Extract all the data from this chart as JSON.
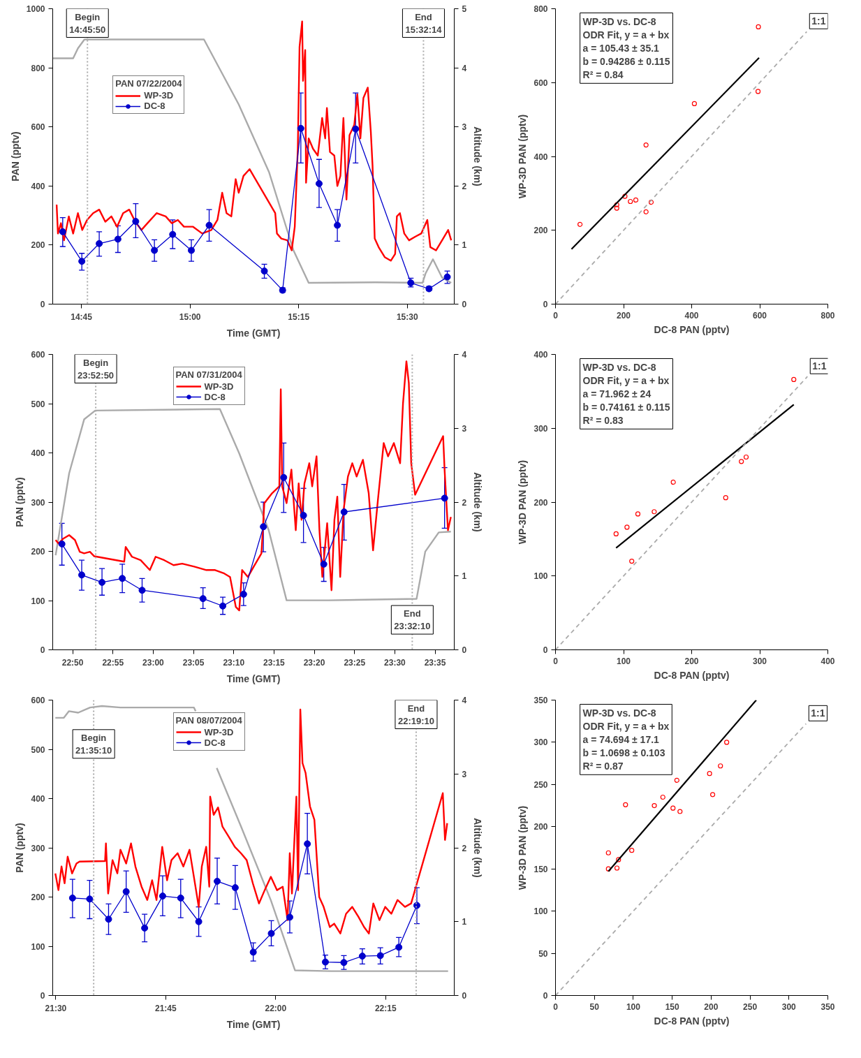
{
  "chart_data": [
    {
      "type": "line",
      "xlabel": "Time (GMT)",
      "ylabel": "PAN (pptv)",
      "y2label": "Altitude (km)",
      "legend_title": "PAN 07/22/2004",
      "legend": "top left",
      "grid": false,
      "xlim": [
        14.684,
        15.608
      ],
      "ylim": [
        0,
        1000
      ],
      "y2lim": [
        0,
        5
      ],
      "xticks": [
        {
          "value": 14.75,
          "label": "14:45"
        },
        {
          "value": 15,
          "label": "15:00"
        },
        {
          "value": 15.25,
          "label": "15:15"
        },
        {
          "value": 15.5,
          "label": "15:30"
        }
      ],
      "yticks": [
        0,
        200,
        400,
        600,
        800,
        1000
      ],
      "y2ticks": [
        0,
        1,
        2,
        3,
        4,
        5
      ],
      "annotations": [
        "Begin\n14:45:50",
        "End\n15:32:14"
      ],
      "ref_lines": [
        {
          "axis": "x",
          "value": 14.7639,
          "color": "#aaaaaa",
          "line_style": "dotted"
        },
        {
          "axis": "x",
          "value": 15.5372,
          "color": "#aaaaaa",
          "line_style": "dotted"
        }
      ],
      "series": [
        {
          "color": "#aaaaaa",
          "axis": "y2",
          "x": [
            14.684,
            14.731,
            14.742,
            14.757,
            15.032,
            15.112,
            15.182,
            15.238,
            15.273,
            15.427,
            15.535,
            15.542,
            15.559,
            15.58,
            15.601
          ],
          "values": [
            4.16,
            4.16,
            4.33,
            4.48,
            4.48,
            3.38,
            2.23,
            0.91,
            0.36,
            0.37,
            0.36,
            0.52,
            0.76,
            0.45,
            0.36
          ]
        },
        {
          "name": "WP-3D",
          "color": "#ff0000",
          "x": [
            14.693,
            14.696,
            14.703,
            14.71,
            14.721,
            14.731,
            14.742,
            14.752,
            14.763,
            14.777,
            14.791,
            14.805,
            14.819,
            14.832,
            14.846,
            14.86,
            14.874,
            14.888,
            14.902,
            14.923,
            14.944,
            14.958,
            14.972,
            14.986,
            15.007,
            15.028,
            15.049,
            15.063,
            15.074,
            15.084,
            15.095,
            15.105,
            15.112,
            15.123,
            15.137,
            15.196,
            15.2,
            15.21,
            15.224,
            15.234,
            15.241,
            15.248,
            15.252,
            15.258,
            15.26,
            15.265,
            15.267,
            15.273,
            15.283,
            15.294,
            15.304,
            15.311,
            15.315,
            15.322,
            15.332,
            15.339,
            15.346,
            15.353,
            15.36,
            15.367,
            15.378,
            15.385,
            15.392,
            15.399,
            15.409,
            15.416,
            15.42,
            15.425,
            15.434,
            15.448,
            15.462,
            15.472,
            15.476,
            15.483,
            15.493,
            15.504,
            15.518,
            15.532,
            15.546,
            15.553,
            15.566,
            15.58,
            15.594,
            15.601
          ],
          "values": [
            337,
            239,
            274,
            216,
            297,
            239,
            308,
            251,
            285,
            308,
            320,
            279,
            297,
            262,
            308,
            320,
            279,
            251,
            274,
            308,
            297,
            274,
            285,
            262,
            262,
            239,
            251,
            285,
            377,
            308,
            297,
            423,
            377,
            434,
            457,
            308,
            239,
            222,
            216,
            182,
            262,
            526,
            871,
            957,
            756,
            860,
            411,
            561,
            526,
            503,
            630,
            561,
            664,
            515,
            503,
            400,
            434,
            630,
            354,
            572,
            607,
            710,
            561,
            698,
            733,
            584,
            469,
            222,
            193,
            159,
            147,
            170,
            297,
            308,
            239,
            216,
            228,
            239,
            285,
            193,
            182,
            216,
            251,
            216
          ]
        },
        {
          "name": "DC-8",
          "color": "#0000cc",
          "marker": "circle",
          "x": [
            14.707,
            14.751,
            14.791,
            14.834,
            14.875,
            14.918,
            14.96,
            15.003,
            15.044,
            15.171,
            15.213,
            15.255,
            15.297,
            15.339,
            15.381,
            15.508,
            15.55,
            15.592
          ],
          "values": [
            245,
            145,
            205,
            220,
            280,
            182,
            236,
            182,
            267,
            112,
            47,
            595,
            408,
            267,
            593,
            72,
            52,
            92
          ],
          "errors": [
            [
              195,
              293
            ],
            [
              115,
              172
            ],
            [
              162,
              245
            ],
            [
              175,
              265
            ],
            [
              225,
              340
            ],
            [
              145,
              218
            ],
            [
              188,
              285
            ],
            [
              145,
              218
            ],
            [
              213,
              320
            ],
            [
              88,
              135
            ],
            [
              40,
              55
            ],
            [
              478,
              715
            ],
            [
              327,
              490
            ],
            [
              213,
              320
            ],
            [
              478,
              715
            ],
            [
              58,
              88
            ],
            [
              45,
              60
            ],
            [
              70,
              112
            ]
          ]
        }
      ]
    },
    {
      "type": "scatter",
      "xlabel": "DC-8 PAN (pptv)",
      "ylabel": "WP-3D PAN (pptv)",
      "grid": false,
      "legend": false,
      "annotations": [
        "WP-3D vs. DC-8",
        "ODR Fit, y = a + bx",
        "a = 105.43 ± 35.1",
        "b = 0.94286 ± 0.115",
        "R² = 0.84"
      ],
      "xlim": [
        0,
        800
      ],
      "ylim": [
        0,
        800
      ],
      "xticks": [
        0,
        200,
        400,
        600,
        800
      ],
      "yticks": [
        0,
        200,
        400,
        600,
        800
      ],
      "series": [
        {
          "color": "#ff0000",
          "marker": "circle",
          "x": [
            72,
            180,
            180,
            204,
            220,
            236,
            266,
            266,
            281,
            408,
            596,
            595
          ],
          "values": [
            216,
            260,
            269,
            292,
            278,
            282,
            431,
            250,
            276,
            543,
            751,
            576
          ]
        },
        {
          "type": "line",
          "color": "#000000",
          "x": [
            47,
            598
          ],
          "values": [
            149,
            667
          ]
        },
        {
          "type": "line",
          "name": "1:1",
          "color": "#aaaaaa",
          "line_style": "dashed",
          "x": [
            0,
            738
          ],
          "values": [
            0,
            738
          ]
        }
      ]
    },
    {
      "type": "line",
      "xlabel": "Time (GMT)",
      "ylabel": "PAN (pptv)",
      "y2label": "Altitude (km)",
      "legend_title": "PAN 07/31/2004",
      "legend": "top",
      "grid": false,
      "xlim": [
        22.792,
        23.623
      ],
      "ylim": [
        0,
        600
      ],
      "y2lim": [
        0,
        4
      ],
      "xticks": [
        {
          "value": 22.8333,
          "label": "22:50"
        },
        {
          "value": 22.9167,
          "label": "22:55"
        },
        {
          "value": 23,
          "label": "23:00"
        },
        {
          "value": 23.0833,
          "label": "23:05"
        },
        {
          "value": 23.1667,
          "label": "23:10"
        },
        {
          "value": 23.25,
          "label": "23:15"
        },
        {
          "value": 23.3333,
          "label": "23:20"
        },
        {
          "value": 23.4167,
          "label": "23:25"
        },
        {
          "value": 23.5,
          "label": "23:30"
        },
        {
          "value": 23.5833,
          "label": "23:35"
        }
      ],
      "yticks": [
        0,
        100,
        200,
        300,
        400,
        500,
        600
      ],
      "y2ticks": [
        0,
        1,
        2,
        3,
        4
      ],
      "annotations": [
        "Begin\n23:52:50",
        "End\n23:32:10"
      ],
      "ref_lines": [
        {
          "axis": "x",
          "value": 22.881,
          "color": "#aaaaaa",
          "line_style": "dotted"
        },
        {
          "axis": "x",
          "value": 23.5361,
          "color": "#aaaaaa",
          "line_style": "dotted"
        }
      ],
      "series": [
        {
          "color": "#aaaaaa",
          "axis": "y2",
          "x": [
            22.798,
            22.826,
            22.857,
            22.88,
            23.138,
            23.178,
            23.239,
            23.276,
            23.363,
            23.545,
            23.563,
            23.591,
            23.616
          ],
          "values": [
            1.28,
            2.39,
            3.12,
            3.24,
            3.26,
            2.66,
            1.62,
            0.67,
            0.67,
            0.69,
            1.33,
            1.59,
            1.6
          ]
        },
        {
          "name": "WP-3D",
          "color": "#ff0000",
          "x": [
            22.798,
            22.804,
            22.814,
            22.826,
            22.838,
            22.848,
            22.857,
            22.869,
            22.878,
            22.94,
            22.943,
            22.956,
            22.974,
            22.993,
            23.005,
            23.023,
            23.042,
            23.06,
            23.085,
            23.11,
            23.128,
            23.147,
            23.159,
            23.171,
            23.178,
            23.184,
            23.196,
            23.208,
            23.224,
            23.23,
            23.246,
            23.261,
            23.264,
            23.267,
            23.276,
            23.286,
            23.295,
            23.301,
            23.307,
            23.313,
            23.323,
            23.329,
            23.338,
            23.344,
            23.35,
            23.36,
            23.369,
            23.375,
            23.381,
            23.387,
            23.394,
            23.403,
            23.412,
            23.421,
            23.434,
            23.446,
            23.455,
            23.465,
            23.477,
            23.486,
            23.498,
            23.511,
            23.517,
            23.524,
            23.529,
            23.534,
            23.542,
            23.6,
            23.603,
            23.61,
            23.616
          ],
          "values": [
            223,
            216,
            226,
            233,
            223,
            199,
            196,
            199,
            190,
            179,
            209,
            189,
            182,
            162,
            189,
            182,
            172,
            175,
            169,
            162,
            162,
            155,
            148,
            87,
            80,
            162,
            148,
            169,
            196,
            298,
            318,
            332,
            529,
            332,
            298,
            366,
            243,
            338,
            264,
            338,
            379,
            332,
            393,
            243,
            148,
            257,
            121,
            264,
            311,
            148,
            284,
            352,
            379,
            352,
            386,
            318,
            202,
            304,
            420,
            393,
            420,
            379,
            501,
            586,
            542,
            379,
            315,
            434,
            366,
            243,
            270
          ]
        },
        {
          "name": "DC-8",
          "color": "#0000cc",
          "marker": "circle",
          "x": [
            22.811,
            22.852,
            22.894,
            22.936,
            22.977,
            23.103,
            23.144,
            23.187,
            23.228,
            23.27,
            23.311,
            23.353,
            23.395,
            23.603
          ],
          "values": [
            215,
            152,
            137,
            145,
            121,
            104,
            89,
            113,
            250,
            350,
            273,
            174,
            280,
            308
          ],
          "errors": [
            [
              172,
              257
            ],
            [
              121,
              182
            ],
            [
              111,
              165
            ],
            [
              116,
              174
            ],
            [
              97,
              145
            ],
            [
              84,
              126
            ],
            [
              72,
              107
            ],
            [
              90,
              136
            ],
            [
              199,
              300
            ],
            [
              279,
              420
            ],
            [
              218,
              328
            ],
            [
              139,
              208
            ],
            [
              223,
              336
            ],
            [
              247,
              370
            ]
          ]
        }
      ]
    },
    {
      "type": "scatter",
      "xlabel": "DC-8 PAN (pptv)",
      "ylabel": "WP-3D PAN (pptv)",
      "grid": false,
      "legend": false,
      "annotations": [
        "WP-3D vs. DC-8",
        "ODR Fit, y = a + bx",
        "a = 71.962 ± 24",
        "b = 0.74161 ± 0.115",
        "R² = 0.83"
      ],
      "xlim": [
        0,
        400
      ],
      "ylim": [
        0,
        400
      ],
      "xticks": [
        0,
        100,
        200,
        300,
        400
      ],
      "yticks": [
        0,
        100,
        200,
        300,
        400
      ],
      "series": [
        {
          "color": "#ff0000",
          "marker": "circle",
          "x": [
            89,
            105,
            112,
            121,
            145,
            173,
            250,
            273,
            280,
            350
          ],
          "values": [
            157,
            166,
            120,
            184,
            187,
            227,
            206,
            255,
            261,
            366
          ]
        },
        {
          "type": "line",
          "color": "#000000",
          "x": [
            89,
            350
          ],
          "values": [
            138,
            332
          ]
        },
        {
          "type": "line",
          "name": "1:1",
          "color": "#aaaaaa",
          "line_style": "dashed",
          "x": [
            0,
            370
          ],
          "values": [
            0,
            370
          ]
        }
      ]
    },
    {
      "type": "line",
      "xlabel": "Time (GMT)",
      "ylabel": "PAN (pptv)",
      "y2label": "Altitude (km)",
      "legend_title": "PAN 08/07/2004",
      "legend": "top",
      "grid": false,
      "xlim": [
        21.493,
        22.406
      ],
      "ylim": [
        0,
        600
      ],
      "y2lim": [
        0,
        4
      ],
      "xticks": [
        {
          "value": 21.5,
          "label": "21:30"
        },
        {
          "value": 21.75,
          "label": "21:45"
        },
        {
          "value": 22,
          "label": "22:00"
        },
        {
          "value": 22.25,
          "label": "22:15"
        }
      ],
      "yticks": [
        0,
        100,
        200,
        300,
        400,
        500,
        600
      ],
      "y2ticks": [
        0,
        1,
        2,
        3,
        4
      ],
      "annotations": [
        "Begin\n21:35:10",
        "End\n22:19:10"
      ],
      "ref_lines": [
        {
          "axis": "x",
          "value": 21.5861,
          "color": "#aaaaaa",
          "line_style": "dotted"
        },
        {
          "axis": "x",
          "value": 22.3194,
          "color": "#aaaaaa",
          "line_style": "dotted"
        }
      ],
      "series": [
        {
          "color": "#aaaaaa",
          "axis": "y2",
          "x": [
            21.499,
            21.518,
            21.53,
            21.551,
            21.578,
            21.605,
            21.647,
            21.814,
            21.818,
            21.84,
            21.866,
            21.921,
            21.989,
            22.044,
            22.126,
            22.392
          ],
          "values": [
            3.76,
            3.76,
            3.85,
            3.83,
            3.9,
            3.92,
            3.9,
            3.9,
            3.85,
            null,
            3.08,
            2.29,
            1.29,
            0.34,
            0.33,
            0.33
          ]
        },
        {
          "name": "WP-3D",
          "color": "#ff0000",
          "x": [
            21.499,
            21.506,
            21.513,
            21.52,
            21.527,
            21.537,
            21.547,
            21.554,
            21.612,
            21.614,
            21.619,
            21.629,
            21.64,
            21.647,
            21.66,
            21.671,
            21.681,
            21.695,
            21.708,
            21.719,
            21.729,
            21.742,
            21.753,
            21.763,
            21.777,
            21.79,
            21.804,
            21.814,
            21.825,
            21.832,
            21.842,
            21.849,
            21.851,
            21.859,
            21.869,
            21.879,
            21.893,
            21.907,
            21.921,
            21.934,
            21.948,
            21.962,
            21.975,
            21.989,
            22.003,
            22.016,
            22.027,
            22.032,
            22.037,
            22.047,
            22.051,
            22.056,
            22.061,
            22.068,
            22.078,
            22.088,
            22.099,
            22.109,
            22.123,
            22.133,
            22.147,
            22.16,
            22.174,
            22.188,
            22.201,
            22.212,
            22.222,
            22.236,
            22.249,
            22.263,
            22.277,
            22.294,
            22.308,
            22.38,
            22.385,
            22.39
          ],
          "values": [
            248,
            214,
            262,
            228,
            282,
            248,
            268,
            272,
            273,
            309,
            207,
            275,
            248,
            296,
            268,
            309,
            262,
            221,
            194,
            234,
            194,
            302,
            234,
            275,
            289,
            262,
            296,
            241,
            180,
            262,
            302,
            221,
            404,
            367,
            382,
            343,
            323,
            302,
            289,
            275,
            228,
            187,
            214,
            241,
            214,
            221,
            153,
            289,
            207,
            404,
            214,
            581,
            472,
            452,
            384,
            357,
            200,
            180,
            139,
            146,
            126,
            166,
            180,
            160,
            139,
            126,
            187,
            153,
            180,
            166,
            194,
            180,
            187,
            411,
            316,
            350
          ]
        },
        {
          "name": "DC-8",
          "color": "#0000cc",
          "marker": "circle",
          "x": [
            21.538,
            21.577,
            21.62,
            21.66,
            21.702,
            21.743,
            21.784,
            21.825,
            21.867,
            21.908,
            21.949,
            21.99,
            22.032,
            22.072,
            22.113,
            22.155,
            22.197,
            22.238,
            22.28,
            22.321
          ],
          "values": [
            198,
            196,
            155,
            211,
            137,
            202,
            198,
            150,
            232,
            219,
            88,
            126,
            159,
            308,
            68,
            67,
            80,
            81,
            98,
            183
          ],
          "errors": [
            [
              158,
              236
            ],
            [
              156,
              234
            ],
            [
              124,
              186
            ],
            [
              169,
              253
            ],
            [
              109,
              165
            ],
            [
              162,
              243
            ],
            [
              158,
              236
            ],
            [
              120,
              180
            ],
            [
              186,
              279
            ],
            [
              175,
              264
            ],
            [
              70,
              107
            ],
            [
              101,
              152
            ],
            [
              127,
              192
            ],
            [
              247,
              370
            ],
            [
              54,
              82
            ],
            [
              53,
              81
            ],
            [
              64,
              95
            ],
            [
              64,
              97
            ],
            [
              79,
              118
            ],
            [
              146,
              219
            ]
          ]
        }
      ]
    },
    {
      "type": "scatter",
      "xlabel": "DC-8 PAN (pptv)",
      "ylabel": "WP-3D PAN (pptv)",
      "grid": false,
      "legend": false,
      "annotations": [
        "WP-3D vs. DC-8",
        "ODR Fit, y = a + bx",
        "a = 74.694 ± 17.1",
        "b = 1.0698 ± 0.103",
        "R² = 0.87"
      ],
      "xlim": [
        0,
        350
      ],
      "ylim": [
        0,
        350
      ],
      "xticks": [
        0,
        50,
        100,
        150,
        200,
        250,
        300,
        350
      ],
      "yticks": [
        0,
        50,
        100,
        150,
        200,
        250,
        300,
        350
      ],
      "series": [
        {
          "color": "#ff0000",
          "marker": "circle",
          "x": [
            68,
            68,
            79,
            81,
            90,
            98,
            127,
            138,
            151,
            156,
            160,
            198,
            202,
            212,
            220
          ],
          "values": [
            169,
            150,
            151,
            161,
            226,
            172,
            225,
            235,
            222,
            255,
            218,
            263,
            238,
            272,
            300
          ]
        },
        {
          "type": "line",
          "color": "#000000",
          "x": [
            68,
            258
          ],
          "values": [
            147,
            350
          ]
        },
        {
          "type": "line",
          "name": "1:1",
          "color": "#aaaaaa",
          "line_style": "dashed",
          "x": [
            0,
            322
          ],
          "values": [
            0,
            322
          ]
        }
      ]
    }
  ]
}
